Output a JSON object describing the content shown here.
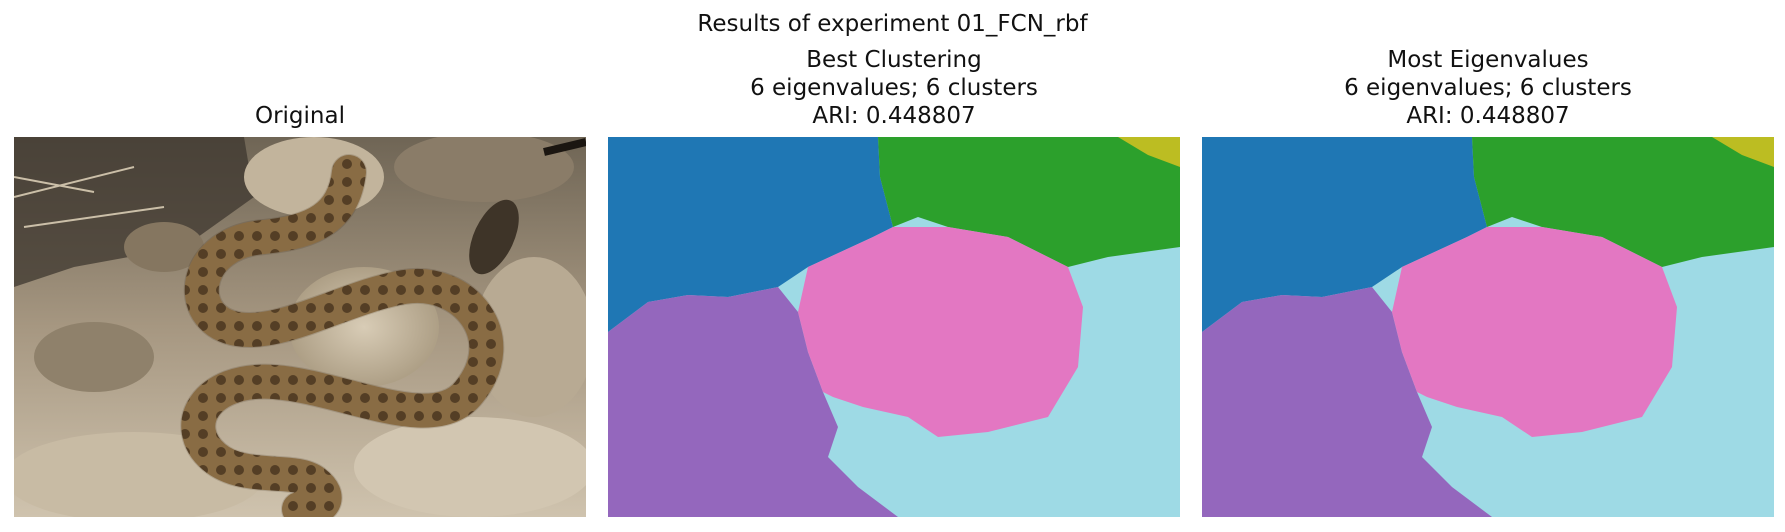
{
  "figure": {
    "suptitle": "Results of experiment 01_FCN_rbf"
  },
  "panels": {
    "original": {
      "title": "Original",
      "image_description_icon": "snake-photo"
    },
    "best": {
      "title_line1": "Best Clustering",
      "title_line2": "6 eigenvalues; 6 clusters",
      "title_line3": "ARI: 0.448807"
    },
    "most": {
      "title_line1": "Most Eigenvalues",
      "title_line2": "6 eigenvalues; 6 clusters",
      "title_line3": "ARI: 0.448807"
    }
  },
  "colors": {
    "cluster_blue": "#1f77b4",
    "cluster_green": "#2ca02c",
    "cluster_olive": "#bcbd22",
    "cluster_pink": "#e377c2",
    "cluster_purple": "#9467bd",
    "cluster_cyan": "#9edae5"
  }
}
